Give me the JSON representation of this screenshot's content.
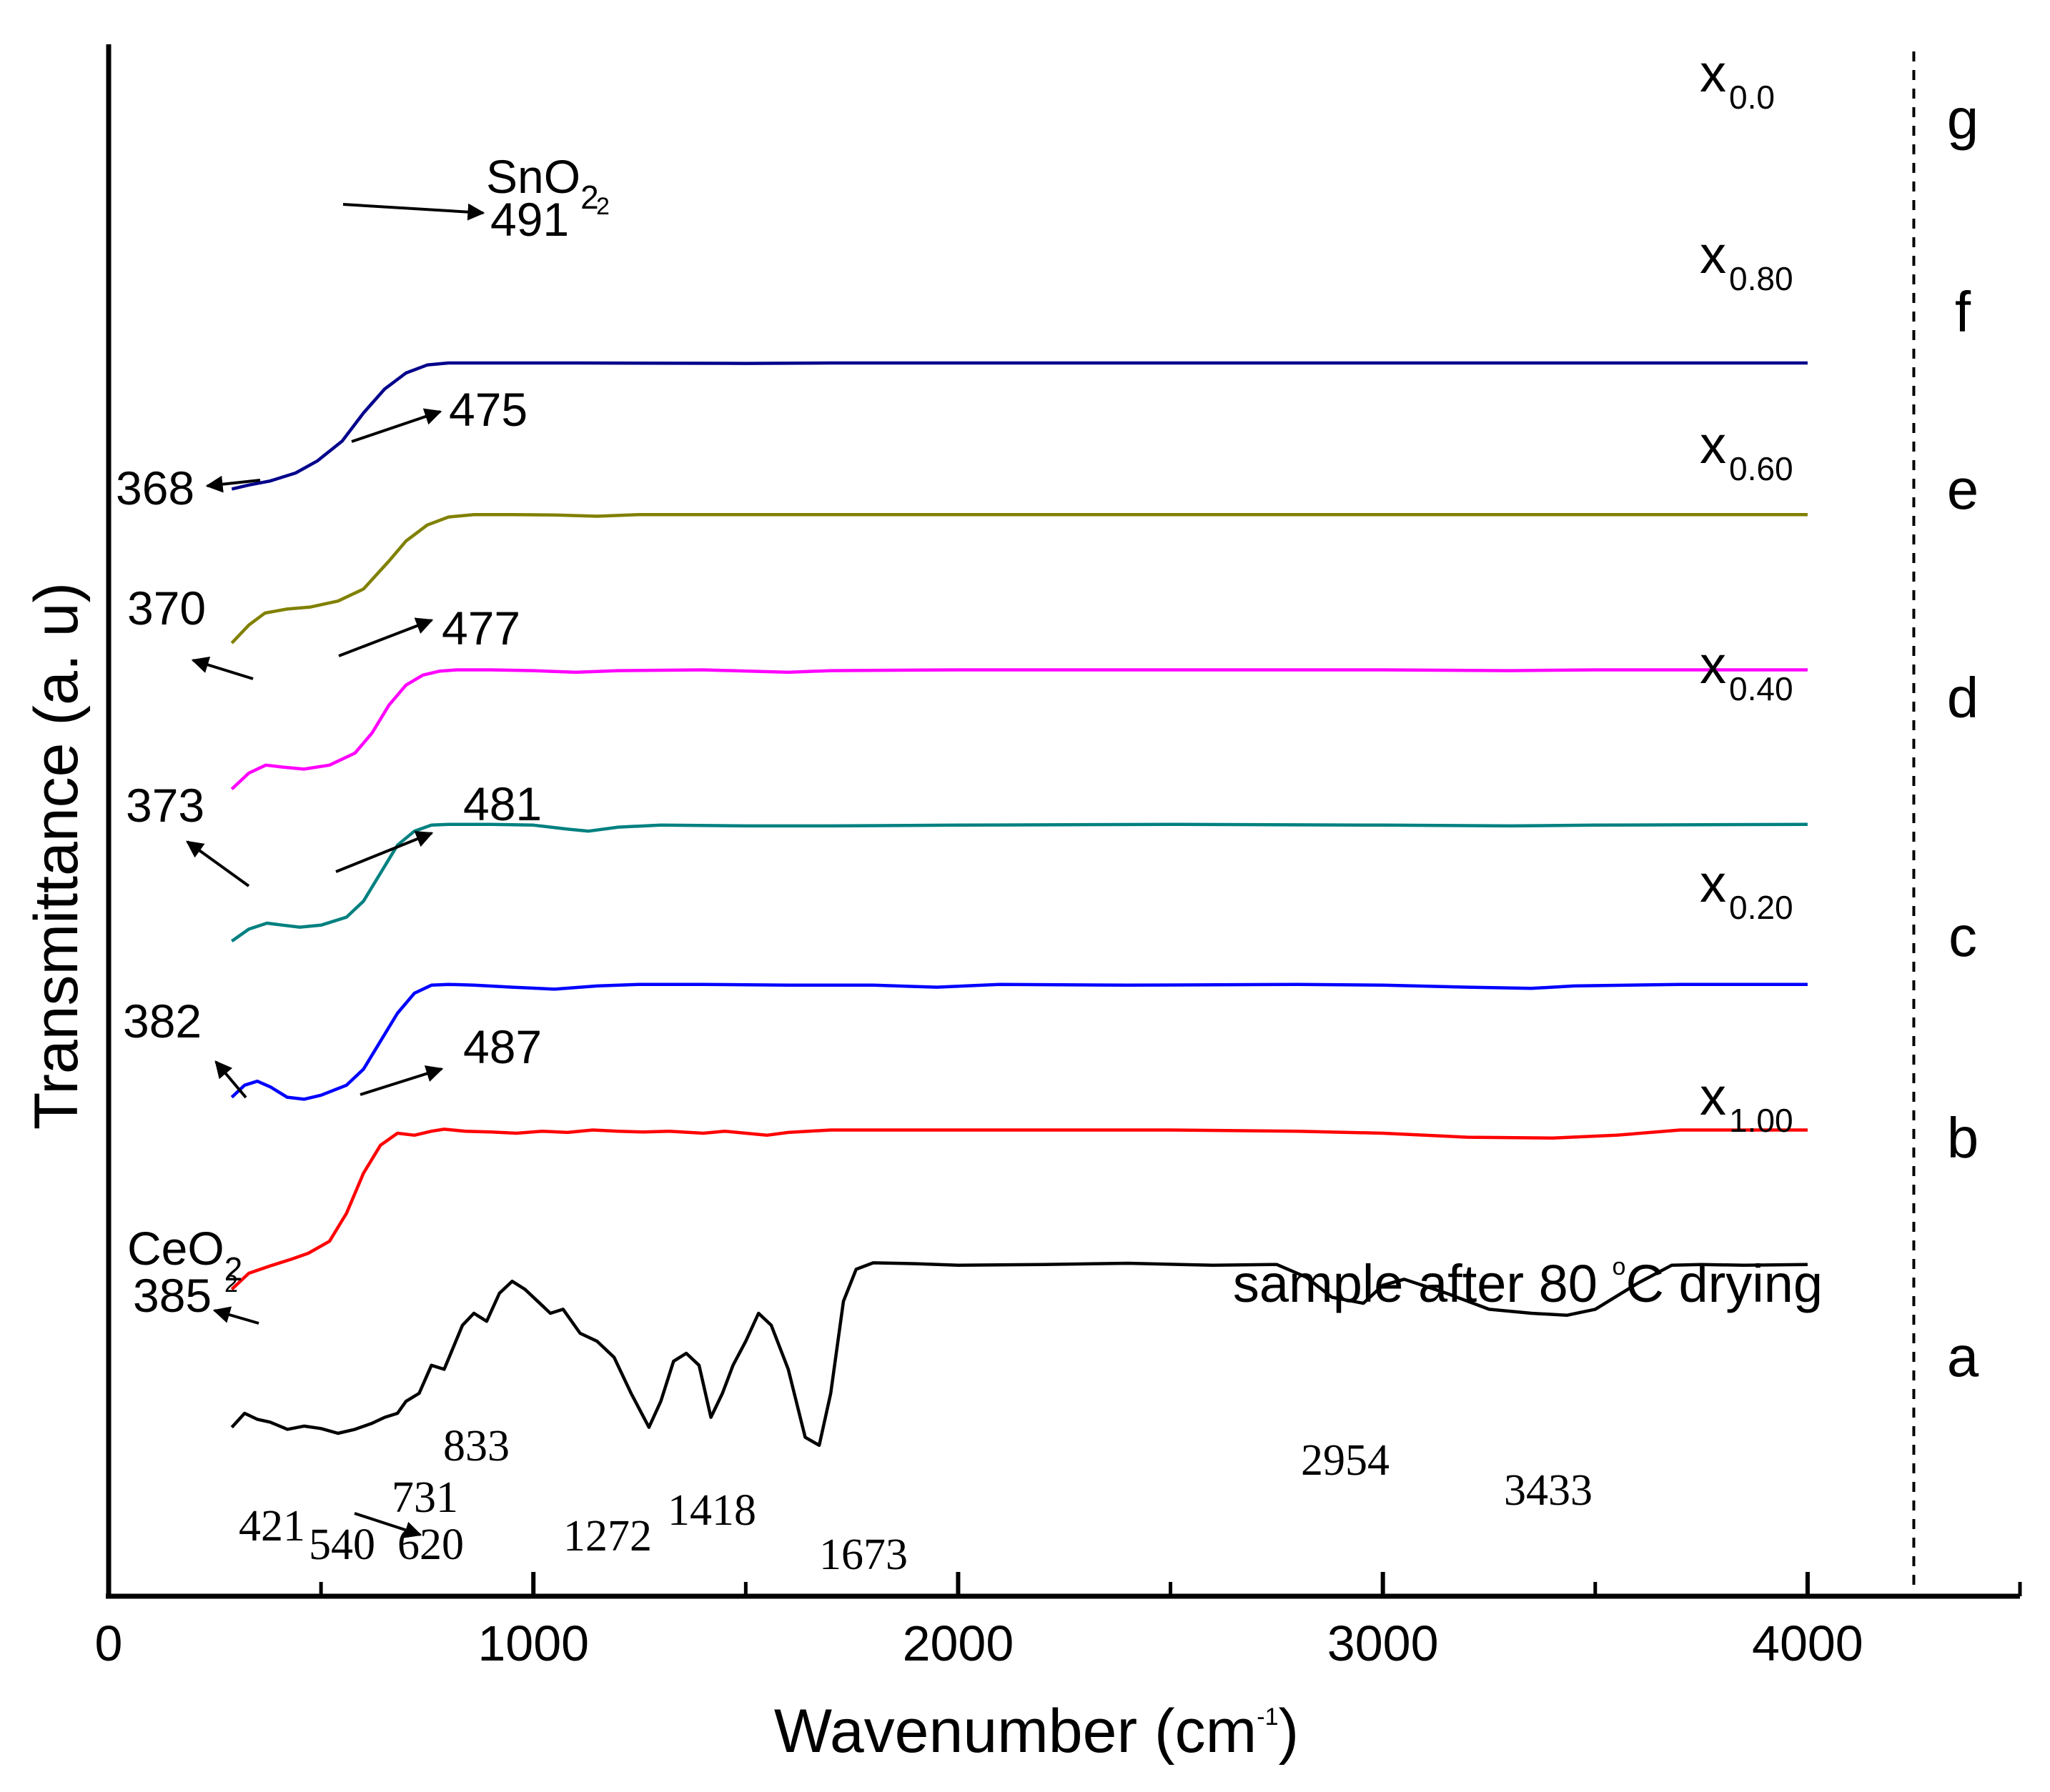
{
  "chart_data": {
    "type": "line",
    "title": "",
    "xlabel": "Wavenumber (cm",
    "xlabel_sup": "-1",
    "xlabel_close": ")",
    "ylabel": "Transmittance  (a. u)",
    "xlim": [
      0,
      4500
    ],
    "xticks": [
      0,
      1000,
      2000,
      3000,
      4000
    ],
    "xtick_labels": [
      "0",
      "1000",
      "2000",
      "3000",
      "4000"
    ],
    "divider_x": 4250,
    "series": [
      {
        "id": "a",
        "letter": "a",
        "name": "sample after 80 °C drying",
        "label_main": "sample after 80 ",
        "label_deg": "o",
        "label_rest": "C drying",
        "color": "#000000",
        "points": [
          [
            290,
            -0.235
          ],
          [
            320,
            -0.2
          ],
          [
            350,
            -0.215
          ],
          [
            380,
            -0.222
          ],
          [
            421,
            -0.24
          ],
          [
            460,
            -0.232
          ],
          [
            500,
            -0.238
          ],
          [
            540,
            -0.25
          ],
          [
            580,
            -0.24
          ],
          [
            620,
            -0.225
          ],
          [
            650,
            -0.21
          ],
          [
            680,
            -0.2
          ],
          [
            700,
            -0.17
          ],
          [
            731,
            -0.15
          ],
          [
            760,
            -0.08
          ],
          [
            790,
            -0.09
          ],
          [
            833,
            0.02
          ],
          [
            860,
            0.05
          ],
          [
            890,
            0.03
          ],
          [
            920,
            0.1
          ],
          [
            950,
            0.13
          ],
          [
            980,
            0.11
          ],
          [
            1010,
            0.08
          ],
          [
            1040,
            0.05
          ],
          [
            1070,
            0.06
          ],
          [
            1110,
            0.0
          ],
          [
            1150,
            -0.02
          ],
          [
            1190,
            -0.06
          ],
          [
            1230,
            -0.15
          ],
          [
            1272,
            -0.235
          ],
          [
            1300,
            -0.17
          ],
          [
            1330,
            -0.07
          ],
          [
            1360,
            -0.05
          ],
          [
            1390,
            -0.08
          ],
          [
            1418,
            -0.21
          ],
          [
            1445,
            -0.15
          ],
          [
            1470,
            -0.08
          ],
          [
            1500,
            -0.02
          ],
          [
            1530,
            0.05
          ],
          [
            1560,
            0.02
          ],
          [
            1600,
            -0.09
          ],
          [
            1640,
            -0.26
          ],
          [
            1673,
            -0.28
          ],
          [
            1700,
            -0.15
          ],
          [
            1730,
            0.08
          ],
          [
            1760,
            0.16
          ],
          [
            1800,
            0.176
          ],
          [
            1900,
            0.174
          ],
          [
            2000,
            0.17
          ],
          [
            2200,
            0.172
          ],
          [
            2400,
            0.175
          ],
          [
            2600,
            0.17
          ],
          [
            2750,
            0.172
          ],
          [
            2820,
            0.14
          ],
          [
            2880,
            0.09
          ],
          [
            2954,
            0.075
          ],
          [
            3000,
            0.12
          ],
          [
            3050,
            0.135
          ],
          [
            3150,
            0.1
          ],
          [
            3250,
            0.06
          ],
          [
            3350,
            0.05
          ],
          [
            3433,
            0.045
          ],
          [
            3500,
            0.06
          ],
          [
            3600,
            0.125
          ],
          [
            3680,
            0.17
          ],
          [
            3750,
            0.172
          ],
          [
            3850,
            0.17
          ],
          [
            4000,
            0.172
          ]
        ]
      },
      {
        "id": "b",
        "letter": "b",
        "name": "x1.00",
        "label_main": "x",
        "label_sub": "1.00",
        "color": "#ff0000",
        "points": [
          [
            290,
            0.11
          ],
          [
            330,
            0.15
          ],
          [
            385,
            0.17
          ],
          [
            430,
            0.185
          ],
          [
            470,
            0.2
          ],
          [
            520,
            0.23
          ],
          [
            560,
            0.3
          ],
          [
            600,
            0.4
          ],
          [
            640,
            0.47
          ],
          [
            680,
            0.5
          ],
          [
            720,
            0.495
          ],
          [
            760,
            0.505
          ],
          [
            790,
            0.51
          ],
          [
            840,
            0.505
          ],
          [
            900,
            0.503
          ],
          [
            960,
            0.5
          ],
          [
            1020,
            0.505
          ],
          [
            1080,
            0.502
          ],
          [
            1140,
            0.508
          ],
          [
            1200,
            0.505
          ],
          [
            1260,
            0.503
          ],
          [
            1320,
            0.505
          ],
          [
            1400,
            0.5
          ],
          [
            1450,
            0.505
          ],
          [
            1500,
            0.5
          ],
          [
            1550,
            0.495
          ],
          [
            1600,
            0.502
          ],
          [
            1700,
            0.508
          ],
          [
            1900,
            0.508
          ],
          [
            2200,
            0.508
          ],
          [
            2500,
            0.508
          ],
          [
            2800,
            0.505
          ],
          [
            3000,
            0.5
          ],
          [
            3200,
            0.49
          ],
          [
            3400,
            0.488
          ],
          [
            3550,
            0.495
          ],
          [
            3700,
            0.508
          ],
          [
            4000,
            0.508
          ]
        ]
      },
      {
        "id": "c",
        "letter": "c",
        "name": "x0.20",
        "label_main": "x",
        "label_sub": "0.20",
        "color": "#0000ff",
        "points": [
          [
            290,
            0.59
          ],
          [
            320,
            0.62
          ],
          [
            350,
            0.63
          ],
          [
            382,
            0.615
          ],
          [
            420,
            0.59
          ],
          [
            460,
            0.585
          ],
          [
            500,
            0.595
          ],
          [
            560,
            0.62
          ],
          [
            600,
            0.66
          ],
          [
            640,
            0.73
          ],
          [
            680,
            0.8
          ],
          [
            720,
            0.85
          ],
          [
            760,
            0.87
          ],
          [
            800,
            0.872
          ],
          [
            860,
            0.87
          ],
          [
            950,
            0.865
          ],
          [
            1050,
            0.86
          ],
          [
            1150,
            0.868
          ],
          [
            1250,
            0.872
          ],
          [
            1400,
            0.872
          ],
          [
            1600,
            0.87
          ],
          [
            1800,
            0.87
          ],
          [
            1950,
            0.865
          ],
          [
            2100,
            0.872
          ],
          [
            2400,
            0.87
          ],
          [
            2800,
            0.872
          ],
          [
            3000,
            0.87
          ],
          [
            3200,
            0.865
          ],
          [
            3350,
            0.862
          ],
          [
            3450,
            0.868
          ],
          [
            3700,
            0.872
          ],
          [
            4000,
            0.872
          ]
        ]
      },
      {
        "id": "d",
        "letter": "d",
        "name": "x0.40",
        "label_main": "x",
        "label_sub": "0.40",
        "color": "#008080",
        "points": [
          [
            290,
            0.98
          ],
          [
            330,
            1.01
          ],
          [
            373,
            1.025
          ],
          [
            410,
            1.02
          ],
          [
            450,
            1.015
          ],
          [
            500,
            1.02
          ],
          [
            560,
            1.04
          ],
          [
            600,
            1.08
          ],
          [
            640,
            1.15
          ],
          [
            680,
            1.22
          ],
          [
            720,
            1.255
          ],
          [
            760,
            1.27
          ],
          [
            800,
            1.272
          ],
          [
            900,
            1.272
          ],
          [
            1000,
            1.27
          ],
          [
            1080,
            1.26
          ],
          [
            1130,
            1.255
          ],
          [
            1200,
            1.265
          ],
          [
            1300,
            1.27
          ],
          [
            1500,
            1.268
          ],
          [
            1700,
            1.268
          ],
          [
            2000,
            1.27
          ],
          [
            2500,
            1.272
          ],
          [
            3000,
            1.27
          ],
          [
            3300,
            1.268
          ],
          [
            3500,
            1.27
          ],
          [
            4000,
            1.272
          ]
        ]
      },
      {
        "id": "e",
        "letter": "e",
        "name": "x0.60",
        "label_main": "x",
        "label_sub": "0.60",
        "color": "#ff00ff",
        "points": [
          [
            290,
            1.36
          ],
          [
            330,
            1.4
          ],
          [
            370,
            1.42
          ],
          [
            410,
            1.415
          ],
          [
            460,
            1.41
          ],
          [
            520,
            1.42
          ],
          [
            580,
            1.45
          ],
          [
            620,
            1.5
          ],
          [
            660,
            1.57
          ],
          [
            700,
            1.62
          ],
          [
            740,
            1.645
          ],
          [
            780,
            1.655
          ],
          [
            820,
            1.658
          ],
          [
            900,
            1.658
          ],
          [
            1000,
            1.656
          ],
          [
            1100,
            1.652
          ],
          [
            1200,
            1.656
          ],
          [
            1400,
            1.658
          ],
          [
            1600,
            1.652
          ],
          [
            1700,
            1.656
          ],
          [
            2000,
            1.658
          ],
          [
            2500,
            1.658
          ],
          [
            3000,
            1.658
          ],
          [
            3300,
            1.656
          ],
          [
            3500,
            1.658
          ],
          [
            4000,
            1.658
          ]
        ]
      },
      {
        "id": "f",
        "letter": "f",
        "name": "x0.80",
        "label_main": "x",
        "label_sub": "0.80",
        "color": "#808000",
        "points": [
          [
            290,
            1.725
          ],
          [
            330,
            1.77
          ],
          [
            368,
            1.8
          ],
          [
            420,
            1.81
          ],
          [
            475,
            1.815
          ],
          [
            540,
            1.83
          ],
          [
            600,
            1.86
          ],
          [
            660,
            1.93
          ],
          [
            700,
            1.98
          ],
          [
            750,
            2.02
          ],
          [
            800,
            2.04
          ],
          [
            860,
            2.046
          ],
          [
            950,
            2.046
          ],
          [
            1050,
            2.045
          ],
          [
            1150,
            2.042
          ],
          [
            1250,
            2.046
          ],
          [
            1500,
            2.046
          ],
          [
            2000,
            2.046
          ],
          [
            2500,
            2.046
          ],
          [
            3000,
            2.046
          ],
          [
            3500,
            2.046
          ],
          [
            4000,
            2.046
          ]
        ]
      },
      {
        "id": "g",
        "letter": "g",
        "name": "x0.0",
        "label_main": "x",
        "label_sub": "0.0",
        "color": "#00008b",
        "points": [
          [
            290,
            2.11
          ],
          [
            330,
            2.12
          ],
          [
            380,
            2.13
          ],
          [
            440,
            2.15
          ],
          [
            491,
            2.18
          ],
          [
            550,
            2.23
          ],
          [
            600,
            2.3
          ],
          [
            650,
            2.36
          ],
          [
            700,
            2.4
          ],
          [
            750,
            2.42
          ],
          [
            800,
            2.425
          ],
          [
            900,
            2.425
          ],
          [
            1100,
            2.425
          ],
          [
            1500,
            2.424
          ],
          [
            1700,
            2.425
          ],
          [
            2000,
            2.425
          ],
          [
            2500,
            2.425
          ],
          [
            3000,
            2.425
          ],
          [
            3500,
            2.425
          ],
          [
            4000,
            2.425
          ]
        ]
      }
    ],
    "peak_labels_a": [
      "421",
      "540",
      "620",
      "731",
      "833",
      "1272",
      "1418",
      "1673",
      "2954",
      "3433"
    ],
    "annotations": {
      "ceo2_name": "CeO",
      "ceo2_sub": "2",
      "ceo2_peak": "385",
      "sno2_name": "SnO",
      "sno2_sub": "2",
      "sno2_peak": "491",
      "b_low": "382",
      "b_high": "487",
      "c_low": "373",
      "c_high": "481",
      "d_low": "370",
      "d_high": "477",
      "e_low": "368",
      "e_high": "475"
    }
  }
}
